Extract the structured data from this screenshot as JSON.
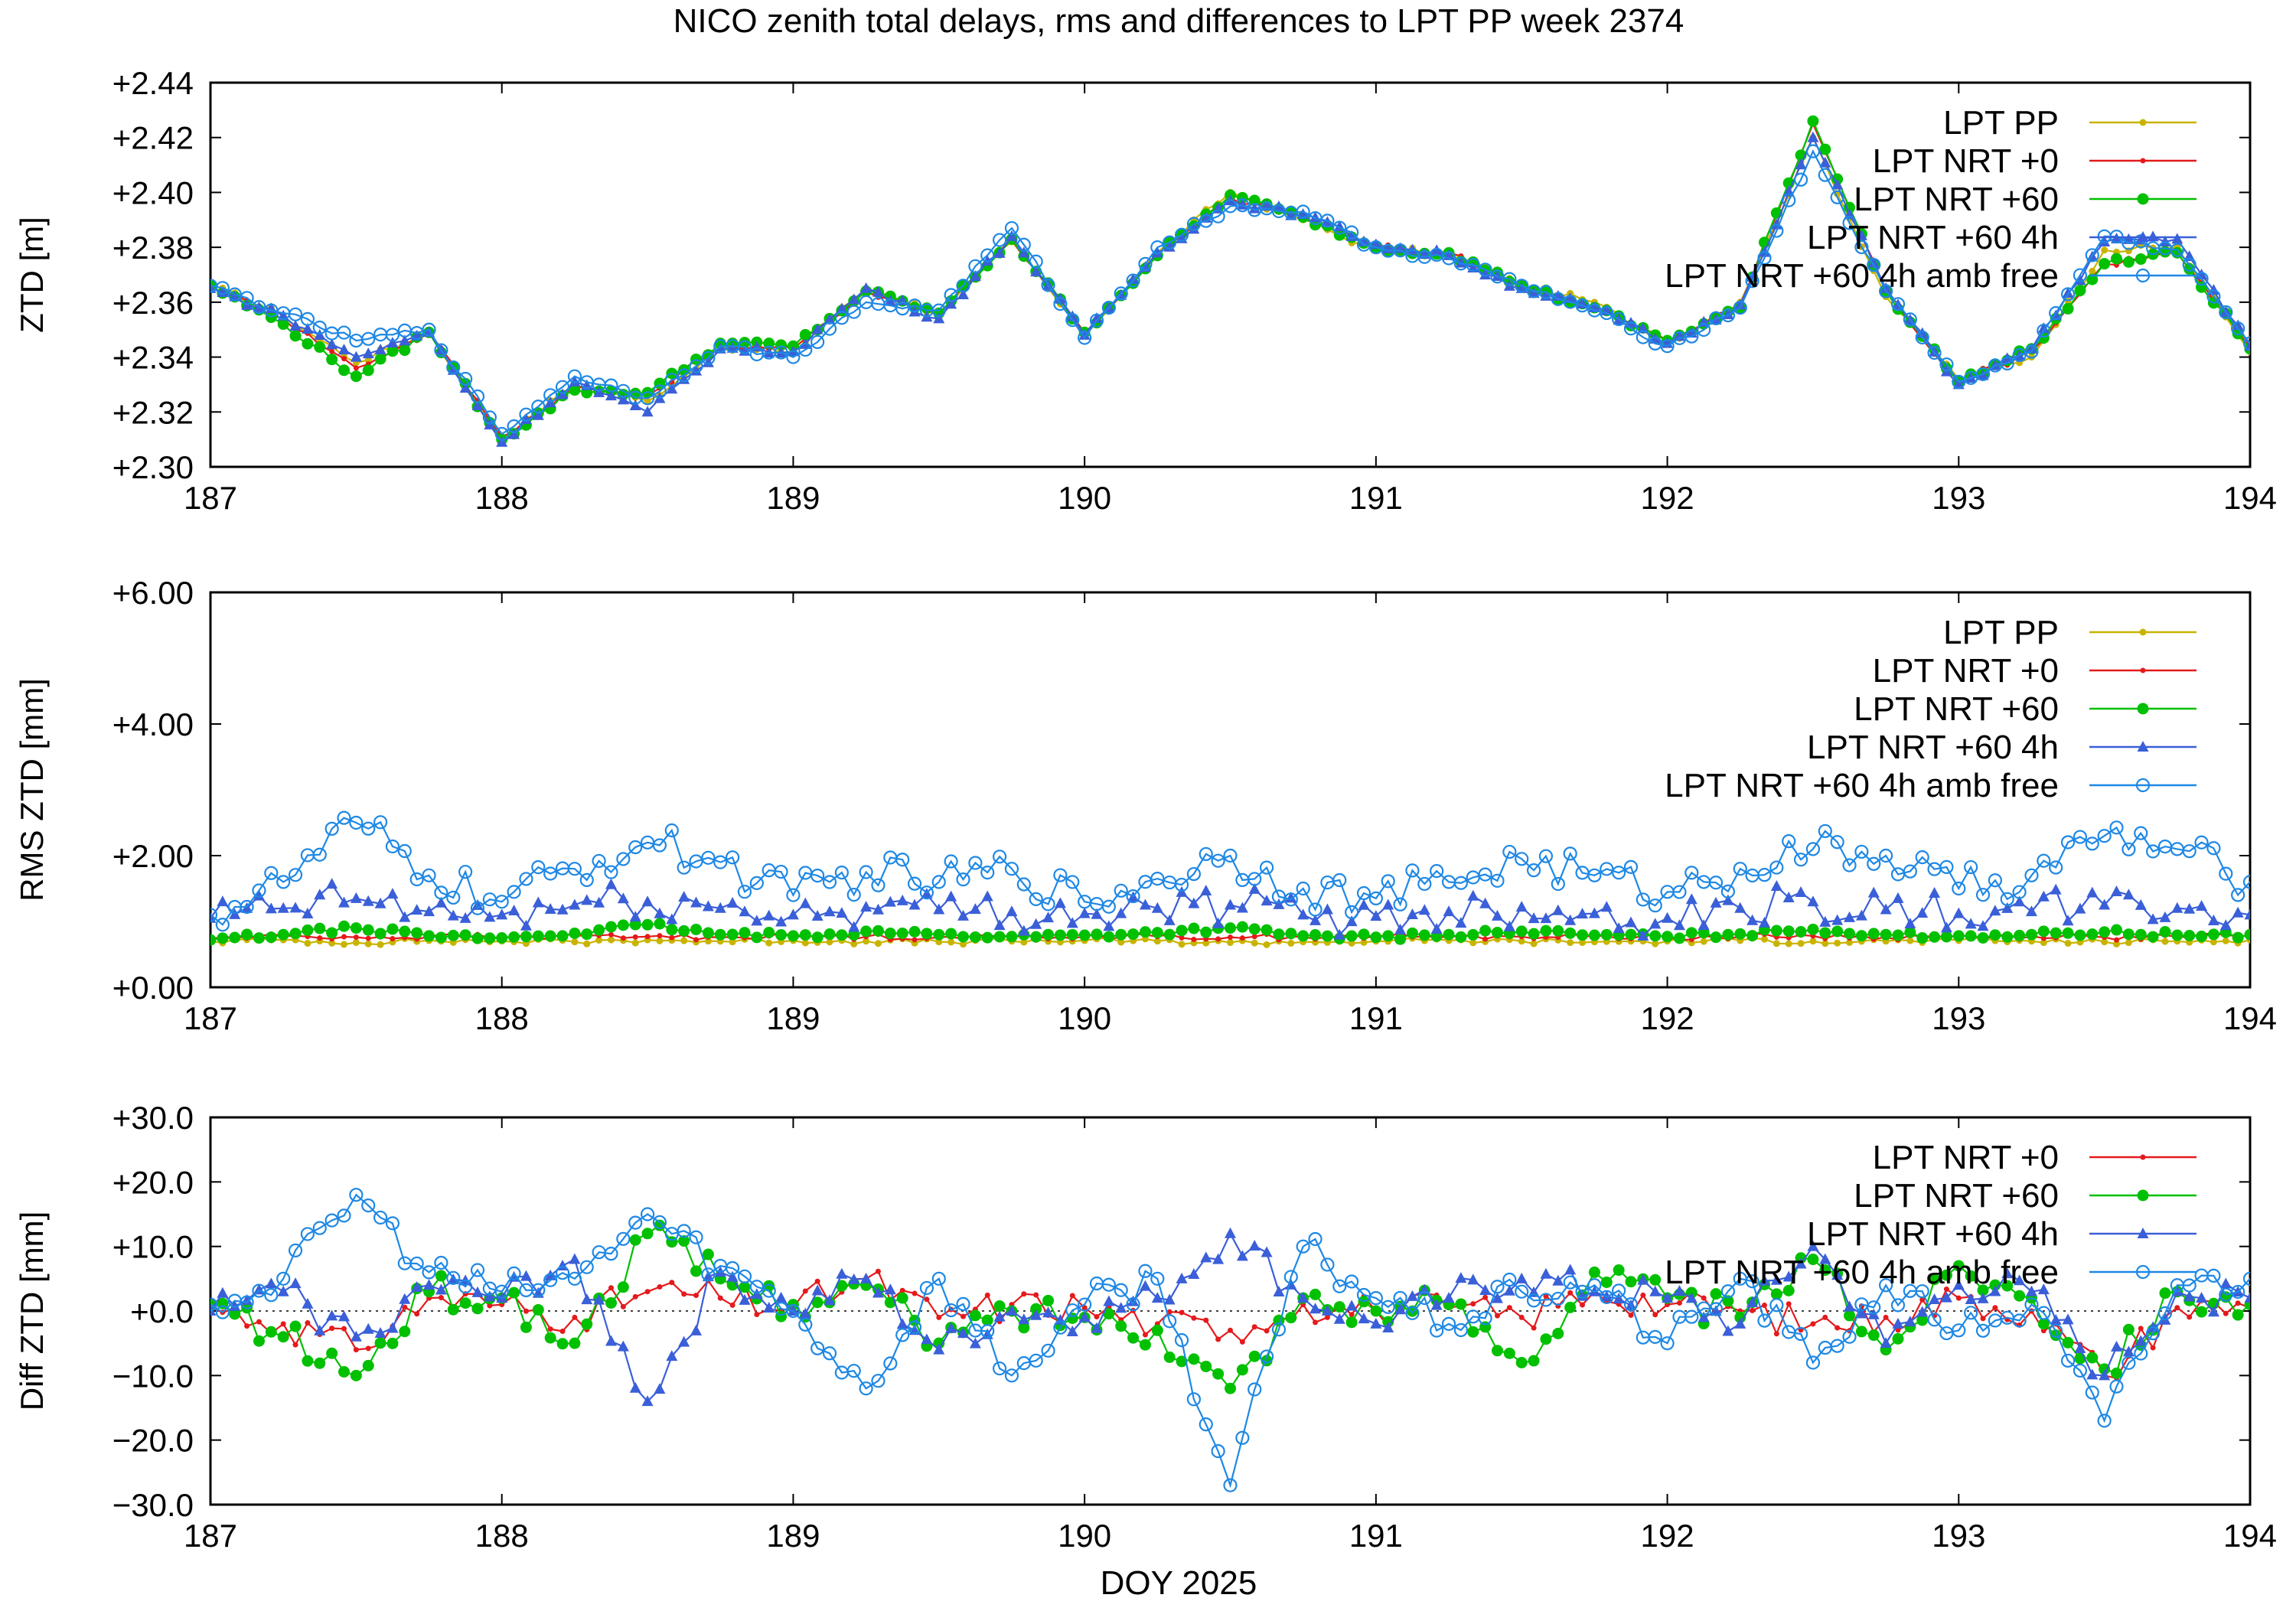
{
  "figure": {
    "title": "NICO zenith total delays, rms and differences to LPT PP week 2374",
    "xlabel": "DOY 2025"
  },
  "colors": {
    "LPT PP": "#c8b400",
    "LPT NRT +0": "#e41a1c",
    "LPT NRT +60": "#00c000",
    "LPT NRT +60 4h": "#3a5fd8",
    "LPT NRT +60 4h amb free": "#1e88e5"
  },
  "chart_data": [
    {
      "type": "line",
      "panel": "ztd",
      "title": "NICO zenith total delays, rms and differences to LPT PP week 2374",
      "ylabel": "ZTD [m]",
      "xlim": [
        187,
        194
      ],
      "ylim": [
        2.3,
        2.44
      ],
      "xticks": [
        "187",
        "188",
        "189",
        "190",
        "191",
        "192",
        "193",
        "194"
      ],
      "yticks": [
        "+2.30",
        "+2.32",
        "+2.34",
        "+2.36",
        "+2.38",
        "+2.40",
        "+2.42",
        "+2.44"
      ],
      "legend_position": "top-right",
      "grid": false,
      "x": [
        187.0,
        187.25,
        187.5,
        187.75,
        188.0,
        188.25,
        188.5,
        188.75,
        189.0,
        189.25,
        189.5,
        189.75,
        190.0,
        190.25,
        190.5,
        190.75,
        191.0,
        191.25,
        191.5,
        191.75,
        192.0,
        192.25,
        192.5,
        192.75,
        193.0,
        193.25,
        193.5,
        193.75,
        194.0
      ],
      "series": [
        {
          "name": "LPT PP",
          "values": [
            2.366,
            2.355,
            2.338,
            2.349,
            2.31,
            2.33,
            2.324,
            2.343,
            2.342,
            2.365,
            2.356,
            2.382,
            2.348,
            2.378,
            2.4,
            2.39,
            2.379,
            2.378,
            2.366,
            2.36,
            2.345,
            2.36,
            2.42,
            2.362,
            2.332,
            2.34,
            2.379,
            2.38,
            2.342
          ]
        },
        {
          "name": "LPT NRT +0",
          "values": [
            2.366,
            2.354,
            2.336,
            2.349,
            2.311,
            2.329,
            2.326,
            2.344,
            2.343,
            2.364,
            2.356,
            2.383,
            2.349,
            2.377,
            2.398,
            2.391,
            2.38,
            2.378,
            2.366,
            2.358,
            2.346,
            2.359,
            2.425,
            2.364,
            2.331,
            2.342,
            2.374,
            2.378,
            2.343
          ]
        },
        {
          "name": "LPT NRT +60",
          "values": [
            2.366,
            2.352,
            2.333,
            2.349,
            2.31,
            2.328,
            2.327,
            2.345,
            2.344,
            2.364,
            2.356,
            2.383,
            2.349,
            2.377,
            2.399,
            2.391,
            2.38,
            2.378,
            2.366,
            2.358,
            2.346,
            2.358,
            2.426,
            2.364,
            2.331,
            2.343,
            2.374,
            2.378,
            2.343
          ]
        },
        {
          "name": "LPT NRT +60 4h",
          "values": [
            2.365,
            2.355,
            2.34,
            2.349,
            2.309,
            2.331,
            2.32,
            2.343,
            2.342,
            2.365,
            2.354,
            2.384,
            2.348,
            2.378,
            2.397,
            2.392,
            2.381,
            2.377,
            2.365,
            2.358,
            2.345,
            2.359,
            2.42,
            2.365,
            2.33,
            2.343,
            2.382,
            2.383,
            2.344
          ]
        },
        {
          "name": "LPT NRT +60 4h amb free",
          "values": [
            2.366,
            2.356,
            2.346,
            2.35,
            2.312,
            2.333,
            2.325,
            2.344,
            2.34,
            2.36,
            2.357,
            2.387,
            2.347,
            2.38,
            2.395,
            2.393,
            2.38,
            2.376,
            2.366,
            2.357,
            2.344,
            2.358,
            2.415,
            2.364,
            2.331,
            2.342,
            2.384,
            2.379,
            2.345
          ]
        }
      ]
    },
    {
      "type": "line",
      "panel": "rms",
      "ylabel": "RMS ZTD [mm]",
      "xlim": [
        187,
        194
      ],
      "ylim": [
        0,
        6
      ],
      "xticks": [
        "187",
        "188",
        "189",
        "190",
        "191",
        "192",
        "193",
        "194"
      ],
      "yticks": [
        "+0.00",
        "+2.00",
        "+4.00",
        "+6.00"
      ],
      "legend_position": "top-right",
      "grid": false,
      "x": [
        187.0,
        187.25,
        187.5,
        187.75,
        188.0,
        188.25,
        188.5,
        188.75,
        189.0,
        189.25,
        189.5,
        189.75,
        190.0,
        190.25,
        190.5,
        190.75,
        191.0,
        191.25,
        191.5,
        191.75,
        192.0,
        192.25,
        192.5,
        192.75,
        193.0,
        193.25,
        193.5,
        193.75,
        194.0
      ],
      "series": [
        {
          "name": "LPT PP",
          "values": [
            0.7,
            0.72,
            0.68,
            0.71,
            0.7,
            0.69,
            0.72,
            0.7,
            0.71,
            0.7,
            0.69,
            0.7,
            0.71,
            0.7,
            0.68,
            0.69,
            0.7,
            0.71,
            0.7,
            0.69,
            0.7,
            0.71,
            0.7,
            0.7,
            0.71,
            0.7,
            0.69,
            0.7,
            0.72
          ]
        },
        {
          "name": "LPT NRT +0",
          "values": [
            0.75,
            0.78,
            0.76,
            0.77,
            0.76,
            0.78,
            0.77,
            0.76,
            0.78,
            0.77,
            0.76,
            0.77,
            0.78,
            0.77,
            0.76,
            0.77,
            0.78,
            0.76,
            0.77,
            0.78,
            0.76,
            0.77,
            0.78,
            0.76,
            0.77,
            0.78,
            0.76,
            0.77,
            0.78
          ]
        },
        {
          "name": "LPT NRT +60",
          "values": [
            0.72,
            0.8,
            0.9,
            0.78,
            0.75,
            0.82,
            0.95,
            0.8,
            0.78,
            0.85,
            0.8,
            0.77,
            0.79,
            0.83,
            0.9,
            0.78,
            0.76,
            0.8,
            0.85,
            0.79,
            0.77,
            0.81,
            0.88,
            0.8,
            0.78,
            0.8,
            0.84,
            0.79,
            0.8
          ]
        },
        {
          "name": "LPT NRT +60 4h",
          "values": [
            1.05,
            1.2,
            1.35,
            1.15,
            1.1,
            1.25,
            1.3,
            1.2,
            1.1,
            1.22,
            1.18,
            1.15,
            1.12,
            1.2,
            1.25,
            1.1,
            1.08,
            1.15,
            1.22,
            1.12,
            1.05,
            1.2,
            1.3,
            1.18,
            1.12,
            1.15,
            1.25,
            1.2,
            1.1
          ]
        },
        {
          "name": "LPT NRT +60 4h amb free",
          "values": [
            1.1,
            1.6,
            2.5,
            1.7,
            1.3,
            1.8,
            2.2,
            1.9,
            1.4,
            1.75,
            1.6,
            1.8,
            1.3,
            1.65,
            2.0,
            1.5,
            1.35,
            1.6,
            1.95,
            1.7,
            1.45,
            1.8,
            2.1,
            2.0,
            1.5,
            1.7,
            2.3,
            2.1,
            1.6
          ]
        }
      ]
    },
    {
      "type": "line",
      "panel": "diff",
      "ylabel": "Diff ZTD [mm]",
      "xlabel": "DOY 2025",
      "xlim": [
        187,
        194
      ],
      "ylim": [
        -30,
        30
      ],
      "xticks": [
        "187",
        "188",
        "189",
        "190",
        "191",
        "192",
        "193",
        "194"
      ],
      "yticks": [
        "−30.0",
        "−20.0",
        "−10.0",
        "+0.0",
        "+10.0",
        "+20.0",
        "+30.0"
      ],
      "legend_position": "top-right",
      "grid": false,
      "zero_line": true,
      "x": [
        187.0,
        187.25,
        187.5,
        187.75,
        188.0,
        188.25,
        188.5,
        188.75,
        189.0,
        189.25,
        189.5,
        189.75,
        190.0,
        190.25,
        190.5,
        190.75,
        191.0,
        191.25,
        191.5,
        191.75,
        192.0,
        192.25,
        192.5,
        192.75,
        193.0,
        193.25,
        193.5,
        193.75,
        194.0
      ],
      "series": [
        {
          "name": "LPT NRT +0",
          "values": [
            0.5,
            -2.0,
            -6.0,
            2.0,
            1.0,
            -1.0,
            3.0,
            2.0,
            0.5,
            5.0,
            -1.0,
            1.0,
            0.5,
            -2.0,
            -3.0,
            1.0,
            0.0,
            0.5,
            -1.0,
            3.0,
            1.0,
            0.0,
            -2.0,
            -1.0,
            2.0,
            0.0,
            -10.0,
            0.5,
            0.5
          ]
        },
        {
          "name": "LPT NRT +60",
          "values": [
            1.0,
            -4.0,
            -10.0,
            3.0,
            2.0,
            -5.0,
            12.0,
            5.0,
            1.0,
            4.0,
            -5.0,
            0.0,
            -1.0,
            -3.0,
            -12.0,
            2.0,
            0.0,
            1.0,
            -8.0,
            6.0,
            2.0,
            -1.0,
            8.0,
            -6.0,
            7.0,
            2.0,
            -9.0,
            3.0,
            1.0
          ]
        },
        {
          "name": "LPT NRT +60 4h",
          "values": [
            0.0,
            3.0,
            -4.0,
            4.0,
            2.0,
            8.0,
            -14.0,
            6.0,
            0.0,
            5.0,
            -6.0,
            0.0,
            -1.0,
            2.0,
            12.0,
            2.0,
            -2.0,
            2.0,
            5.0,
            3.0,
            2.0,
            -2.0,
            10.0,
            -5.0,
            4.0,
            3.0,
            -10.0,
            3.0,
            2.0
          ]
        },
        {
          "name": "LPT NRT +60 4h amb free",
          "values": [
            1.0,
            5.0,
            18.0,
            6.0,
            3.0,
            5.0,
            15.0,
            7.0,
            0.0,
            -12.0,
            5.0,
            -10.0,
            1.0,
            5.0,
            -27.0,
            10.0,
            2.0,
            -2.0,
            3.0,
            4.0,
            -5.0,
            5.0,
            -8.0,
            4.0,
            -3.0,
            1.0,
            -17.0,
            4.0,
            5.0
          ]
        }
      ]
    }
  ]
}
